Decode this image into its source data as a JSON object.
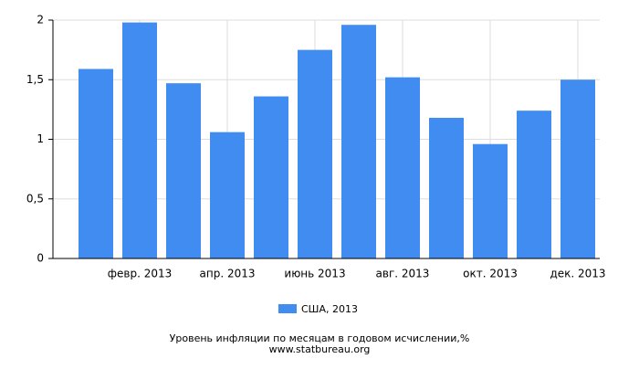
{
  "chart_data": {
    "type": "bar",
    "title": "Уровень инфляции по месяцам в годовом исчислении,%",
    "source": "www.statbureau.org",
    "categories": [
      null,
      "февр. 2013",
      null,
      "апр. 2013",
      null,
      "июнь 2013",
      null,
      "авг. 2013",
      null,
      "окт. 2013",
      null,
      "дек. 2013"
    ],
    "series": [
      {
        "name": "США, 2013",
        "color": "#418cf0",
        "values": [
          1.59,
          1.98,
          1.47,
          1.06,
          1.36,
          1.75,
          1.96,
          1.52,
          1.18,
          0.96,
          1.24,
          1.5
        ]
      }
    ],
    "ylim": [
      0,
      2
    ],
    "yticks": [
      0,
      {
        "value": 0.5,
        "label": "0,5"
      },
      1,
      {
        "value": 1.5,
        "label": "1,5"
      },
      2
    ],
    "grid": true
  }
}
